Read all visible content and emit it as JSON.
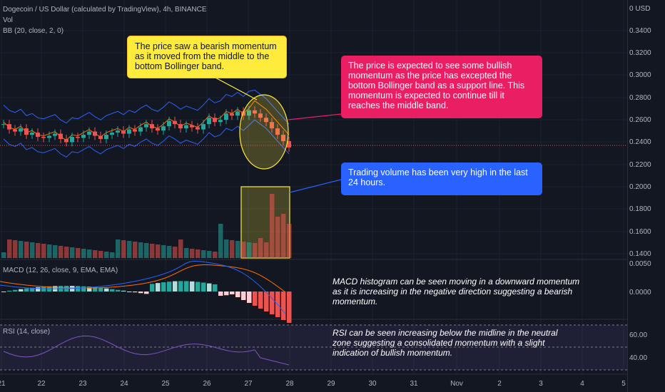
{
  "header": {
    "symbol_line": "Dogecoin / US Dollar (calculated by TradingView), 4h, BINANCE",
    "vol_label": "Vol",
    "bb_label": "BB (20, close, 2, 0)"
  },
  "macd_label": "MACD (12, 26, close, 9, EMA, EMA)",
  "rsi_label": "RSI (14, close)",
  "price_axis": {
    "currency": "0 USD",
    "ticks": [
      "0.3400",
      "0.3200",
      "0.3000",
      "0.2800",
      "0.2600",
      "0.2400",
      "0.2200",
      "0.2000",
      "0.1800",
      "0.1600",
      "0.1400"
    ]
  },
  "macd_axis": {
    "ticks": [
      "0.0050",
      "0.0000"
    ]
  },
  "rsi_axis": {
    "ticks": [
      "60.00",
      "40.00"
    ]
  },
  "time_axis": {
    "ticks": [
      "21",
      "22",
      "23",
      "24",
      "25",
      "26",
      "27",
      "28",
      "29",
      "30",
      "31",
      "Nov",
      "2",
      "3",
      "4",
      "5"
    ]
  },
  "callouts": {
    "bearish": "The price saw a bearish momentum as it moved from the middle to the bottom Bollinger band.",
    "bullish": "The price is expected to see some bullish momentum as the price has excepted the bottom Bollinger band as a support line. This momentum is expected to continue till it reaches the middle band.",
    "volume": "Trading volume has been very high in the last 24 hours."
  },
  "notes": {
    "macd": "MACD histogram can be seen moving in a downward momentum as it is increasing in the negative direction suggesting a bearish momentum.",
    "rsi": "RSI can be seen increasing below the midline in the neutral zone suggesting a consolidated momentum with a slight indication of bullish momentum."
  },
  "colors": {
    "background": "#131722",
    "up_candle": "#26a69a",
    "down_candle": "#ef5350",
    "bb_band": "#2962ff",
    "bb_basis": "#ff6d00",
    "macd_line": "#2962ff",
    "signal_line": "#ff6d00",
    "rsi_line": "#7e57c2",
    "callout_yellow": "#ffeb3b",
    "callout_pink": "#e91e63",
    "callout_blue": "#2962ff"
  },
  "chart_data": {
    "type": "candlestick",
    "price_ylim": [
      0.14,
      0.35
    ],
    "candles_close": [
      0.262,
      0.257,
      0.255,
      0.258,
      0.252,
      0.254,
      0.25,
      0.249,
      0.251,
      0.253,
      0.248,
      0.245,
      0.25,
      0.249,
      0.252,
      0.255,
      0.251,
      0.248,
      0.252,
      0.254,
      0.256,
      0.253,
      0.257,
      0.255,
      0.259,
      0.262,
      0.258,
      0.256,
      0.26,
      0.265,
      0.262,
      0.258,
      0.261,
      0.259,
      0.257,
      0.262,
      0.268,
      0.264,
      0.266,
      0.272,
      0.27,
      0.274,
      0.27,
      0.275,
      0.272,
      0.268,
      0.264,
      0.258,
      0.252,
      0.246,
      0.24
    ],
    "rsi_ylim": [
      20,
      80
    ],
    "macd_ylim": [
      -0.006,
      0.006
    ]
  }
}
